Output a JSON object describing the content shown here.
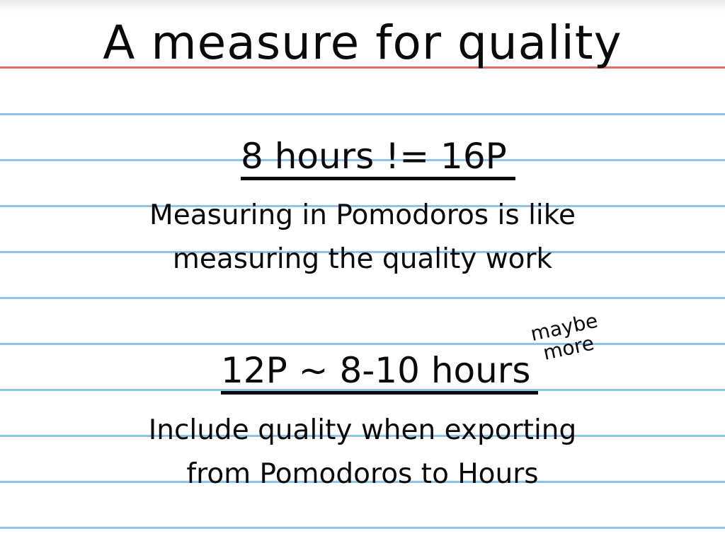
{
  "slide": {
    "title": "A measure for quality",
    "section1": {
      "heading": "8 hours != 16P",
      "body_line1": "Measuring in Pomodoros is like",
      "body_line2": "measuring the quality work"
    },
    "section2": {
      "heading": "12P ~ 8-10 hours",
      "aside_line1": "maybe",
      "aside_line2": "more",
      "body_line1": "Include quality when exporting",
      "body_line2": "from Pomodoros to Hours"
    }
  },
  "colors": {
    "margin_rule": "#e06a6a",
    "line_rule": "#8ec3ea",
    "ink": "#0a0a0a",
    "paper": "#ffffff"
  }
}
